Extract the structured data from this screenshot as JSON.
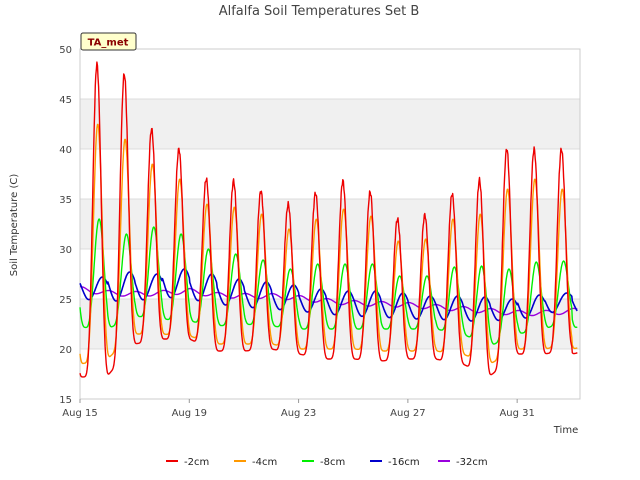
{
  "chart_data": {
    "type": "line",
    "title": "Alfalfa Soil Temperatures Set B",
    "xlabel": "Time",
    "ylabel": "Soil Temperature (C)",
    "ylim": [
      15,
      50
    ],
    "yticks": [
      15,
      20,
      25,
      30,
      35,
      40,
      45,
      50
    ],
    "xlim_days": [
      15,
      33.3
    ],
    "xticks": [
      {
        "day": 15,
        "label": "Aug 15"
      },
      {
        "day": 19,
        "label": "Aug 19"
      },
      {
        "day": 23,
        "label": "Aug 23"
      },
      {
        "day": 27,
        "label": "Aug 27"
      },
      {
        "day": 31,
        "label": "Aug 31"
      }
    ],
    "grid": true,
    "legend_position": "bottom",
    "annotation": "TA_met",
    "colors": {
      "-2cm": "#ee0000",
      "-4cm": "#ff9900",
      "-8cm": "#00ee00",
      "-16cm": "#0000cc",
      "-32cm": "#9900dd"
    },
    "series": [
      {
        "name": "-2cm",
        "color": "#ee0000",
        "daily_min": [
          17.2,
          17.3,
          20.5,
          21.0,
          21.0,
          19.8,
          19.8,
          20.0,
          19.5,
          19.0,
          19.0,
          18.8,
          19.0,
          19.0,
          18.5,
          17.3,
          19.5,
          19.5,
          20.0
        ],
        "daily_max": [
          48.5,
          47.5,
          42.0,
          40.0,
          37.0,
          36.8,
          35.8,
          34.5,
          35.6,
          36.8,
          35.7,
          33.0,
          33.4,
          35.5,
          36.9,
          40.0,
          40.0,
          40.0
        ]
      },
      {
        "name": "-4cm",
        "color": "#ff9900",
        "daily_min": [
          18.5,
          19.0,
          21.5,
          21.5,
          21.3,
          20.5,
          20.5,
          20.5,
          20.0,
          20.0,
          20.0,
          19.8,
          19.8,
          19.8,
          19.5,
          18.5,
          20.0,
          20.0,
          20.5
        ],
        "daily_max": [
          42.5,
          41.0,
          38.5,
          37.0,
          34.5,
          34.2,
          33.5,
          32.0,
          33.0,
          34.0,
          33.3,
          30.8,
          31.0,
          33.0,
          33.5,
          36.0,
          37.0,
          36.0
        ]
      },
      {
        "name": "-8cm",
        "color": "#00ee00",
        "daily_min": [
          22.2,
          22.0,
          23.3,
          23.0,
          22.8,
          22.3,
          22.5,
          22.3,
          22.0,
          22.0,
          22.0,
          22.0,
          22.0,
          22.0,
          21.5,
          20.3,
          21.5,
          22.0,
          23.0
        ],
        "daily_max": [
          33.0,
          31.5,
          32.2,
          31.5,
          30.0,
          29.5,
          28.9,
          28.0,
          28.5,
          28.5,
          28.5,
          27.3,
          27.3,
          28.2,
          28.3,
          28.0,
          28.7,
          28.8
        ]
      },
      {
        "name": "-16cm",
        "color": "#0000cc",
        "daily_min": [
          25.0,
          24.8,
          24.8,
          25.2,
          25.0,
          24.5,
          24.2,
          24.0,
          23.8,
          23.5,
          23.3,
          23.2,
          23.0,
          23.0,
          22.8,
          22.8,
          23.0,
          23.3,
          24.5
        ],
        "daily_max": [
          27.2,
          27.7,
          27.5,
          28.0,
          27.5,
          27.0,
          26.7,
          26.4,
          26.0,
          25.8,
          25.8,
          25.6,
          25.3,
          25.3,
          25.2,
          25.0,
          25.4,
          25.6
        ]
      },
      {
        "name": "-32cm",
        "color": "#9900dd",
        "daily_mean": [
          26.0,
          25.6,
          25.5,
          25.6,
          25.8,
          25.4,
          25.3,
          25.3,
          25.1,
          24.8,
          24.6,
          24.5,
          24.4,
          24.2,
          24.0,
          23.8,
          23.6,
          23.6,
          23.8,
          24.0
        ]
      }
    ]
  }
}
